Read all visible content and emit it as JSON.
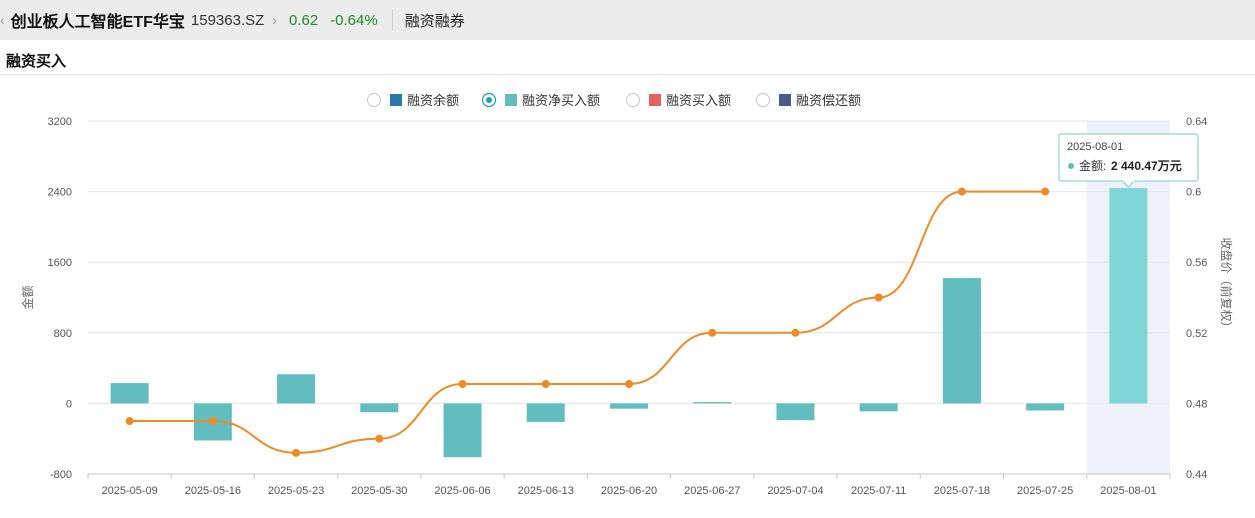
{
  "header": {
    "back_icon": "chevron-left-icon",
    "fund_name": "创业板人工智能ETF华宝",
    "fund_code": "159363.SZ",
    "forward_icon": "chevron-right-icon",
    "price": "0.62",
    "change_pct": "-0.64%",
    "tab_label": "融资融券",
    "colors": {
      "price": "#1a8a2a"
    }
  },
  "section": {
    "title": "融资买入"
  },
  "legend": [
    {
      "label": "融资余额",
      "color": "#2878a8",
      "selected": false
    },
    {
      "label": "融资净买入额",
      "color": "#62bebe",
      "selected": true
    },
    {
      "label": "融资买入额",
      "color": "#e06262",
      "selected": false
    },
    {
      "label": "融资偿还额",
      "color": "#4a5a8c",
      "selected": false
    }
  ],
  "tooltip": {
    "date": "2025-08-01",
    "label": "金额:",
    "value": "2 440.47万元"
  },
  "chart_data": {
    "type": "bar",
    "categories": [
      "2025-05-09",
      "2025-05-16",
      "2025-05-23",
      "2025-05-30",
      "2025-06-06",
      "2025-06-13",
      "2025-06-20",
      "2025-06-27",
      "2025-07-04",
      "2025-07-11",
      "2025-07-18",
      "2025-07-25",
      "2025-08-01"
    ],
    "series": [
      {
        "name": "融资净买入额",
        "type": "bar",
        "axis": "left",
        "color": "#62bebe",
        "values": [
          230,
          -420,
          330,
          -100,
          -610,
          -210,
          -60,
          15,
          -190,
          -90,
          1420,
          -80,
          2440.47
        ]
      },
      {
        "type": "line",
        "axis": "right",
        "color": "#ee8b25",
        "values": [
          0.47,
          0.47,
          0.452,
          0.46,
          0.491,
          0.491,
          0.491,
          0.52,
          0.52,
          0.54,
          0.6,
          0.6,
          null
        ]
      }
    ],
    "ylabel_left": "金额",
    "ylabel_right": "收盘价（前复权）",
    "ylim_left": [
      -800,
      3200
    ],
    "yticks_left": [
      "3200",
      "2400",
      "1600",
      "800",
      "0",
      "-800"
    ],
    "ylim_right": [
      0.44,
      0.64
    ],
    "yticks_right": [
      "0.64",
      "0.6",
      "0.56",
      "0.52",
      "0.48",
      "0.44"
    ],
    "highlight_category": "2025-08-01",
    "grid": true,
    "legend_position": "top-center"
  }
}
